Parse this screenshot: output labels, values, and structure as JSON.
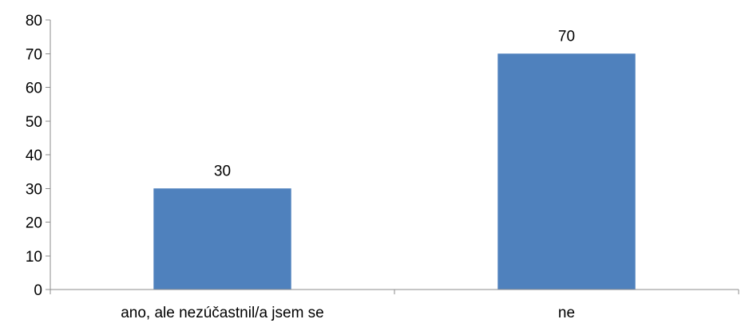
{
  "chart_data": {
    "type": "bar",
    "categories": [
      "ano, ale nezúčastnil/a jsem se",
      "ne"
    ],
    "values": [
      30,
      70
    ],
    "data_labels": [
      "30",
      "70"
    ],
    "ylim": [
      0,
      80
    ],
    "yticks": [
      0,
      10,
      20,
      30,
      40,
      50,
      60,
      70,
      80
    ],
    "ytick_labels": [
      "0",
      "10",
      "20",
      "30",
      "40",
      "50",
      "60",
      "70",
      "80"
    ],
    "bar_color": "#4f81bd",
    "grid": false,
    "legend": "none"
  }
}
